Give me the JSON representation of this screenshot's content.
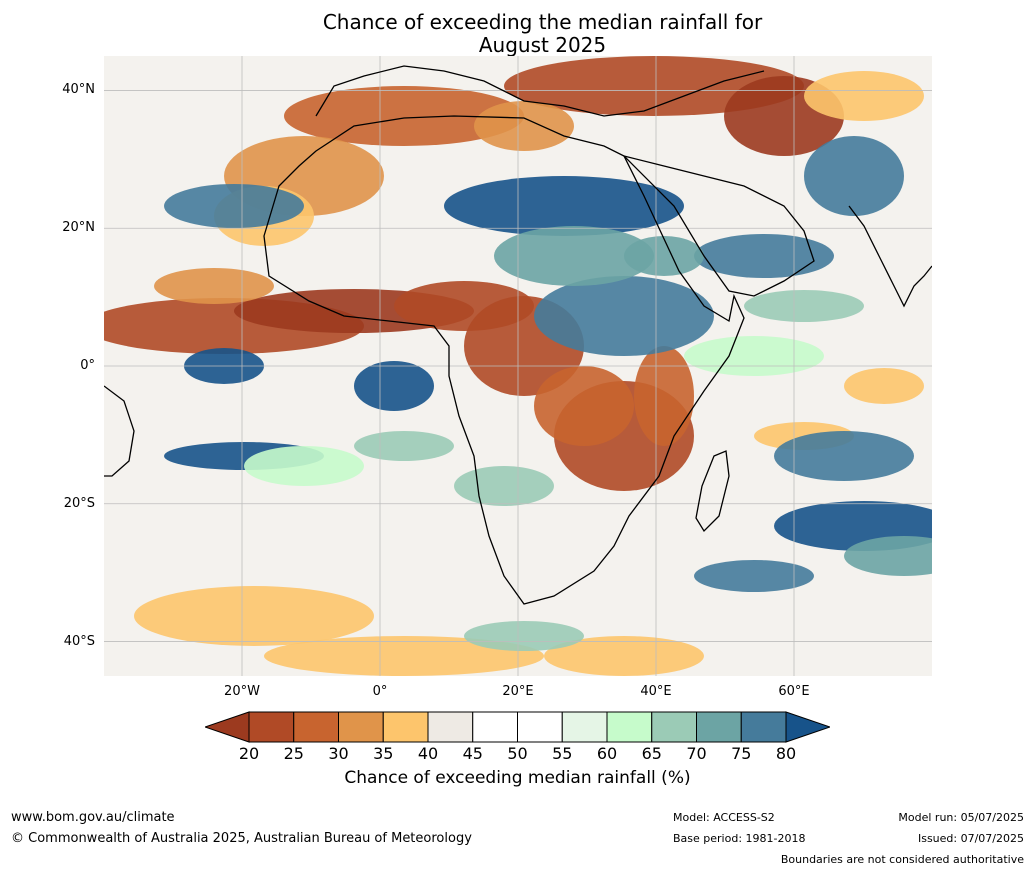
{
  "title": {
    "line1": "Chance of exceeding the median rainfall for",
    "line2": "August 2025"
  },
  "axes": {
    "lat_labels": [
      "40°N",
      "20°N",
      "0°",
      "20°S",
      "40°S"
    ],
    "lat_values": [
      40,
      20,
      0,
      -20,
      -40
    ],
    "lon_labels": [
      "20°W",
      "0°",
      "20°E",
      "40°E",
      "60°E"
    ],
    "lon_values": [
      -20,
      0,
      20,
      40,
      60
    ],
    "lon_range": [
      -40,
      80
    ],
    "lat_range": [
      -45,
      45
    ]
  },
  "colorbar": {
    "ticks": [
      "20",
      "25",
      "30",
      "35",
      "40",
      "45",
      "50",
      "55",
      "60",
      "65",
      "70",
      "75",
      "80"
    ],
    "colors": [
      "#9c3a1f",
      "#b04a26",
      "#c8642f",
      "#e0944a",
      "#fdc56c",
      "#eeeae4",
      "#ffffff",
      "#ffffff",
      "#e5f5e6",
      "#c6fbcb",
      "#9bcbb6",
      "#6ca4a4",
      "#457b9b",
      "#17538a"
    ],
    "label": "Chance of exceeding median rainfall (%)"
  },
  "footer": {
    "website": "www.bom.gov.au/climate",
    "copyright": "© Commonwealth of Australia 2025, Australian Bureau of Meteorology",
    "model": "Model: ACCESS-S2",
    "base_period": "Base period: 1981-2018",
    "model_run": "Model run: 05/07/2025",
    "issued": "Issued: 07/07/2025",
    "disclaimer": "Boundaries are not considered authoritative"
  }
}
